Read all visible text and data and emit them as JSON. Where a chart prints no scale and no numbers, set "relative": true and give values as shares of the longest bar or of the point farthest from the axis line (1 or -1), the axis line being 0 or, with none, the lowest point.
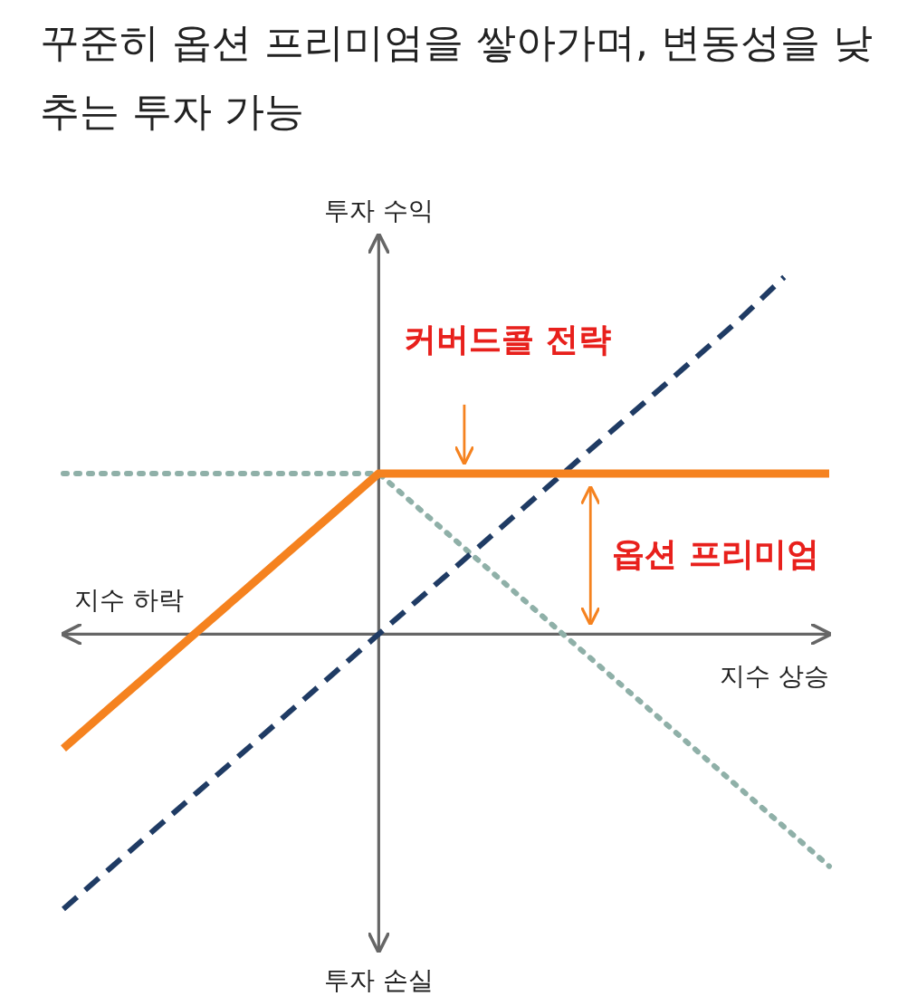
{
  "chart_data": {
    "type": "line",
    "title": "꾸준히 옵션 프리미엄을 쌓아가며, 변동성을 낮추는 투자 가능",
    "xlabel": "지수 상승",
    "ylabel": "투자 수익",
    "relative": true,
    "marker": "none",
    "categories": [
      null,
      null,
      null,
      null,
      null,
      null,
      null,
      null,
      null,
      null,
      null,
      null,
      null,
      null,
      null,
      null,
      null,
      null
    ],
    "series": [
      {
        "color": "#8fb0a8",
        "line_style": "dotted",
        "values": [
          0.45,
          0.45,
          0.45,
          0.45,
          0.45,
          0.45,
          0.45,
          0.45,
          0.34,
          0.23,
          0.12,
          0.01,
          -0.1,
          -0.21,
          -0.32,
          -0.43,
          -0.54,
          -0.65
        ]
      },
      {
        "color": "#1f3b64",
        "line_style": "dashed",
        "values": [
          -0.77,
          -0.66,
          -0.55,
          -0.44,
          -0.33,
          -0.22,
          -0.11,
          0,
          0.11,
          0.22,
          0.33,
          0.44,
          0.55,
          0.66,
          0.77,
          0.88,
          1,
          null
        ]
      },
      {
        "color": "#f5821f",
        "line_style": "solid",
        "values": [
          -0.32,
          -0.21,
          -0.1,
          0.01,
          0.12,
          0.23,
          0.34,
          0.45,
          0.45,
          0.45,
          0.45,
          0.45,
          0.45,
          0.45,
          0.45,
          0.45,
          0.45,
          0.45
        ]
      }
    ],
    "annotations": [
      "커버드콜 전략",
      "옵션 프리미엄",
      "투자 손실",
      "지수 하락"
    ]
  }
}
